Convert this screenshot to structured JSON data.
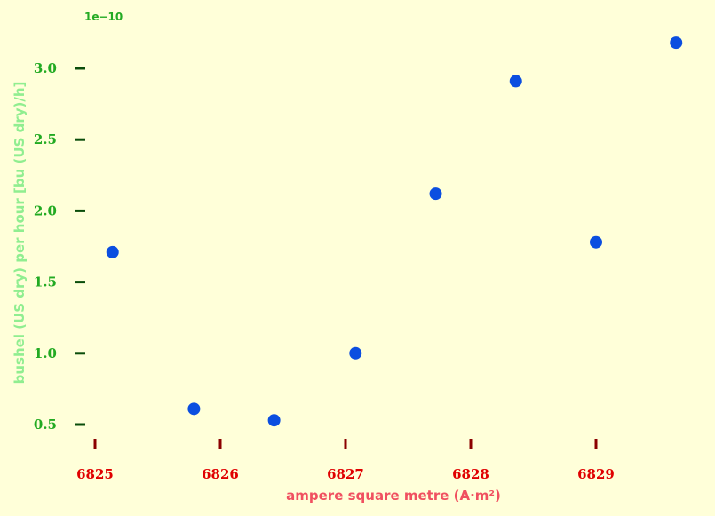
{
  "chart_data": {
    "type": "scatter",
    "title": "",
    "xlabel": "ampere square metre (A·m²)",
    "ylabel": "bushel (US dry) per hour [bu (US dry)/h]",
    "y_offset_label": "1e−10",
    "xlim": [
      6825,
      6829.8
    ],
    "ylim": [
      0.5,
      3.2
    ],
    "x_ticks": [
      6825,
      6826,
      6827,
      6828,
      6829
    ],
    "x_tick_labels": [
      "6825",
      "6826",
      "6827",
      "6828",
      "6829"
    ],
    "y_ticks": [
      0.5,
      1.0,
      1.5,
      2.0,
      2.5,
      3.0
    ],
    "y_tick_labels": [
      "0.5",
      "1.0",
      "1.5",
      "2.0",
      "2.5",
      "3.0"
    ],
    "grid": false,
    "colors": {
      "point": "#0b4ee0",
      "x_tick_mark": "#8b0000",
      "y_tick_mark": "#0a4d0a"
    },
    "x": [
      6825.14,
      6825.79,
      6826.43,
      6827.08,
      6827.72,
      6828.36,
      6829.0,
      6829.64
    ],
    "y": [
      1.71,
      0.61,
      0.53,
      1.0,
      2.12,
      2.91,
      1.78,
      3.18
    ]
  }
}
